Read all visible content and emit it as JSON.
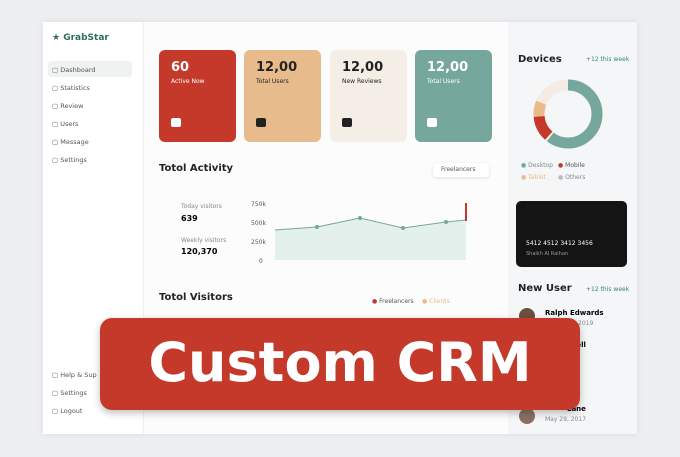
{
  "logo": "GrabStar",
  "nav": [
    "Dashboard",
    "Statistics",
    "Review",
    "Users",
    "Message",
    "Settings"
  ],
  "nav_bottom": [
    "Help & Sup",
    "Settings",
    "Logout"
  ],
  "cards": [
    {
      "value": "60",
      "label": "Active Now"
    },
    {
      "value": "12,00",
      "label": "Total Users"
    },
    {
      "value": "12,00",
      "label": "New Reviews"
    },
    {
      "value": "12,00",
      "label": "Total Users"
    }
  ],
  "activity": {
    "title": "Totol Activity",
    "dropdown": "Freelancers",
    "today_label": "Today visitors",
    "today": "639",
    "weekly_label": "Weekly visitors",
    "weekly": "120,370",
    "yticks": [
      "750k",
      "500k",
      "250k",
      "0"
    ]
  },
  "visitors": {
    "title": "Totol Visitors",
    "legend": [
      "Freelancers",
      "Clients"
    ]
  },
  "devices": {
    "title": "Devices",
    "badge": "+12 this week",
    "legend": [
      "Desktop",
      "Mobile",
      "Tablet",
      "Others"
    ]
  },
  "card": {
    "number": "5412 4512 3412 3456",
    "holder": "Shaikh Al Raihan"
  },
  "new_user": {
    "title": "New User",
    "badge": "+12 this week",
    "users": [
      {
        "name": "Ralph Edwards",
        "date": "2019"
      },
      {
        "name": "ssell",
        "date": ""
      },
      {
        "name": "Lane",
        "date": "May 29, 2017"
      }
    ]
  },
  "banner": "Custom CRM"
}
